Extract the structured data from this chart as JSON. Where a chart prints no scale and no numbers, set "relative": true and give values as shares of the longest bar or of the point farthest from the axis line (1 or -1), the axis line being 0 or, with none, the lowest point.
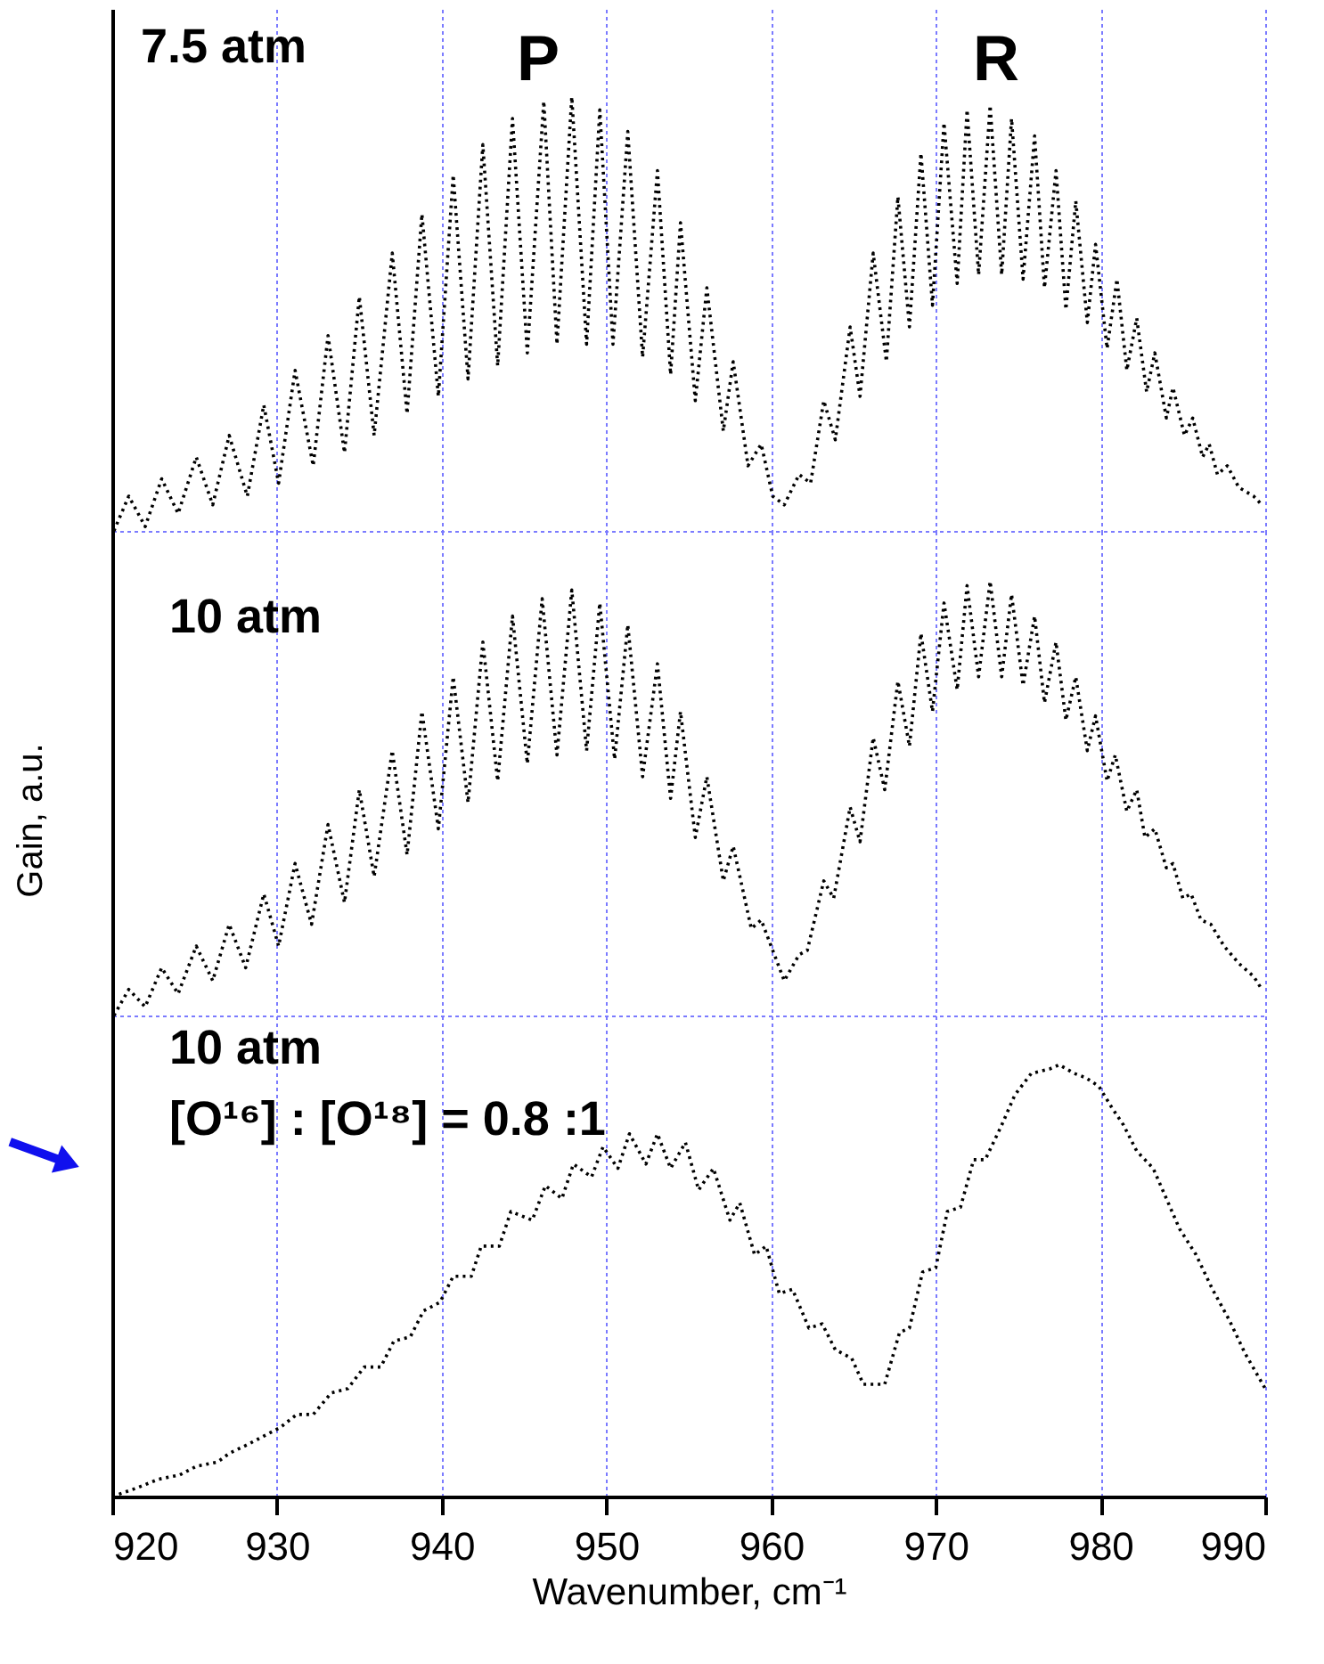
{
  "chart_data": [
    {
      "type": "line",
      "relative": true,
      "color": "#000000",
      "line_style": "dotted",
      "grid": "x",
      "tick_labels": false,
      "xlim": [
        920,
        990
      ],
      "xticks": [
        920,
        930,
        940,
        950,
        960,
        970,
        980,
        990
      ],
      "annotations": [
        "7.5 atm",
        "P",
        "R"
      ],
      "x": [
        920.1,
        921.0,
        922.0,
        923.0,
        924.0,
        925.1,
        926.1,
        927.1,
        928.2,
        929.2,
        930.1,
        931.1,
        932.2,
        933.1,
        934.1,
        935.0,
        935.9,
        937.0,
        937.9,
        938.8,
        939.8,
        940.7,
        941.6,
        942.5,
        943.4,
        944.3,
        945.2,
        946.2,
        947.0,
        947.9,
        948.8,
        949.6,
        950.4,
        951.3,
        952.2,
        953.1,
        953.9,
        954.5,
        955.4,
        956.1,
        957.1,
        957.7,
        958.6,
        959.4,
        960.1,
        960.8,
        961.7,
        962.4,
        963.2,
        963.9,
        964.8,
        965.4,
        966.2,
        967.0,
        967.7,
        968.4,
        969.1,
        969.8,
        970.5,
        971.3,
        971.9,
        972.6,
        973.3,
        974.0,
        974.6,
        975.3,
        976.0,
        976.6,
        977.3,
        977.9,
        978.5,
        979.2,
        979.7,
        980.4,
        981.0,
        981.6,
        982.2,
        982.8,
        983.3,
        984.0,
        984.4,
        985.1,
        985.6,
        986.2,
        986.6,
        987.1,
        987.7,
        988.4,
        989.3,
        989.8
      ],
      "values": [
        0,
        0.08,
        0.01,
        0.12,
        0.04,
        0.17,
        0.06,
        0.22,
        0.08,
        0.29,
        0.11,
        0.37,
        0.15,
        0.45,
        0.18,
        0.54,
        0.22,
        0.64,
        0.27,
        0.73,
        0.31,
        0.82,
        0.35,
        0.89,
        0.38,
        0.95,
        0.41,
        0.99,
        0.43,
        1,
        0.43,
        0.97,
        0.43,
        0.92,
        0.4,
        0.83,
        0.36,
        0.71,
        0.3,
        0.56,
        0.23,
        0.39,
        0.15,
        0.2,
        0.08,
        0.06,
        0.13,
        0.11,
        0.3,
        0.21,
        0.47,
        0.31,
        0.64,
        0.39,
        0.77,
        0.47,
        0.87,
        0.52,
        0.94,
        0.57,
        0.97,
        0.59,
        0.98,
        0.59,
        0.95,
        0.58,
        0.91,
        0.56,
        0.83,
        0.51,
        0.76,
        0.48,
        0.66,
        0.42,
        0.58,
        0.37,
        0.49,
        0.32,
        0.41,
        0.26,
        0.33,
        0.22,
        0.26,
        0.17,
        0.2,
        0.13,
        0.15,
        0.1,
        0.08,
        0.06
      ]
    },
    {
      "type": "line",
      "relative": true,
      "color": "#000000",
      "line_style": "dotted",
      "grid": "x",
      "tick_labels": false,
      "xlim": [
        920,
        990
      ],
      "xticks": [
        920,
        930,
        940,
        950,
        960,
        970,
        980,
        990
      ],
      "ylabel": "Gain, a.u.",
      "annotations": [
        "10 atm"
      ],
      "x": [
        920.1,
        921.0,
        922.0,
        923.0,
        924.0,
        925.1,
        926.1,
        927.1,
        928.1,
        929.2,
        930.1,
        931.1,
        932.1,
        933.1,
        934.1,
        935.0,
        935.9,
        937.0,
        937.9,
        938.8,
        939.8,
        940.7,
        941.6,
        942.5,
        943.4,
        944.3,
        945.2,
        946.1,
        947.0,
        947.9,
        948.8,
        949.6,
        950.5,
        951.3,
        952.2,
        953.1,
        953.9,
        954.5,
        955.4,
        956.1,
        957.1,
        957.7,
        958.8,
        959.4,
        960.0,
        960.8,
        961.7,
        962.2,
        963.2,
        963.8,
        964.8,
        965.4,
        966.2,
        966.9,
        967.7,
        968.4,
        969.1,
        969.8,
        970.5,
        971.3,
        971.9,
        972.6,
        973.3,
        974.0,
        974.6,
        975.3,
        976.0,
        976.6,
        977.3,
        977.9,
        978.5,
        979.2,
        979.7,
        980.4,
        980.9,
        981.6,
        982.2,
        982.7,
        983.3,
        984.0,
        984.4,
        985.0,
        985.5,
        986.1,
        986.7,
        987.5,
        988.4,
        989.3,
        989.8
      ],
      "values": [
        0,
        0.06,
        0.02,
        0.11,
        0.05,
        0.16,
        0.08,
        0.21,
        0.11,
        0.28,
        0.16,
        0.35,
        0.21,
        0.44,
        0.26,
        0.52,
        0.32,
        0.61,
        0.37,
        0.7,
        0.43,
        0.78,
        0.49,
        0.86,
        0.54,
        0.92,
        0.58,
        0.96,
        0.6,
        0.98,
        0.61,
        0.95,
        0.59,
        0.9,
        0.55,
        0.81,
        0.5,
        0.7,
        0.41,
        0.55,
        0.31,
        0.39,
        0.2,
        0.22,
        0.16,
        0.08,
        0.14,
        0.15,
        0.31,
        0.27,
        0.48,
        0.4,
        0.64,
        0.52,
        0.77,
        0.62,
        0.88,
        0.7,
        0.95,
        0.75,
        0.99,
        0.78,
        1,
        0.78,
        0.97,
        0.76,
        0.92,
        0.72,
        0.86,
        0.68,
        0.78,
        0.61,
        0.69,
        0.54,
        0.6,
        0.47,
        0.52,
        0.41,
        0.43,
        0.34,
        0.35,
        0.27,
        0.28,
        0.22,
        0.21,
        0.16,
        0.12,
        0.09,
        0.06
      ]
    },
    {
      "type": "line",
      "relative": true,
      "color": "#000000",
      "line_style": "dotted",
      "grid": "x",
      "tick_labels": "x",
      "xlim": [
        920,
        990
      ],
      "xticks": [
        920,
        930,
        940,
        950,
        960,
        970,
        980,
        990
      ],
      "xlabel": "Wavenumber, cm⁻¹",
      "annotations": [
        "10 atm",
        "[O¹⁶] : [O¹⁸]  = 0.8 :1"
      ],
      "x": [
        920.0,
        921.5,
        922.8,
        924.1,
        925.1,
        926.4,
        927.1,
        928.2,
        929.2,
        930.2,
        931.2,
        932.2,
        933.3,
        934.3,
        935.3,
        936.3,
        937.1,
        938.1,
        938.9,
        939.9,
        940.7,
        941.8,
        942.4,
        943.5,
        944.2,
        945.5,
        946.3,
        947.3,
        948.0,
        949.1,
        949.8,
        950.7,
        951.4,
        952.4,
        953.1,
        953.9,
        954.8,
        955.6,
        956.5,
        957.5,
        958.1,
        959.0,
        959.7,
        960.5,
        961.3,
        962.3,
        963.1,
        963.9,
        964.9,
        965.6,
        966.9,
        967.8,
        968.4,
        969.2,
        970.0,
        970.7,
        971.5,
        972.3,
        973.0,
        974.0,
        974.8,
        975.8,
        976.9,
        977.5,
        978.4,
        979.1,
        979.9,
        980.7,
        981.4,
        982.2,
        983.2,
        984.0,
        984.8,
        985.8,
        986.8,
        987.8,
        988.8,
        990.0
      ],
      "values": [
        0,
        0.02,
        0.04,
        0.05,
        0.07,
        0.08,
        0.1,
        0.12,
        0.14,
        0.16,
        0.19,
        0.19,
        0.24,
        0.25,
        0.3,
        0.3,
        0.36,
        0.37,
        0.43,
        0.45,
        0.51,
        0.51,
        0.58,
        0.58,
        0.66,
        0.64,
        0.72,
        0.69,
        0.77,
        0.74,
        0.81,
        0.76,
        0.84,
        0.77,
        0.84,
        0.76,
        0.82,
        0.71,
        0.76,
        0.64,
        0.68,
        0.56,
        0.58,
        0.47,
        0.48,
        0.39,
        0.4,
        0.34,
        0.32,
        0.26,
        0.26,
        0.38,
        0.39,
        0.52,
        0.53,
        0.66,
        0.67,
        0.78,
        0.78,
        0.86,
        0.93,
        0.98,
        0.99,
        1,
        0.98,
        0.97,
        0.95,
        0.9,
        0.86,
        0.8,
        0.76,
        0.69,
        0.62,
        0.56,
        0.48,
        0.41,
        0.33,
        0.25
      ]
    }
  ]
}
